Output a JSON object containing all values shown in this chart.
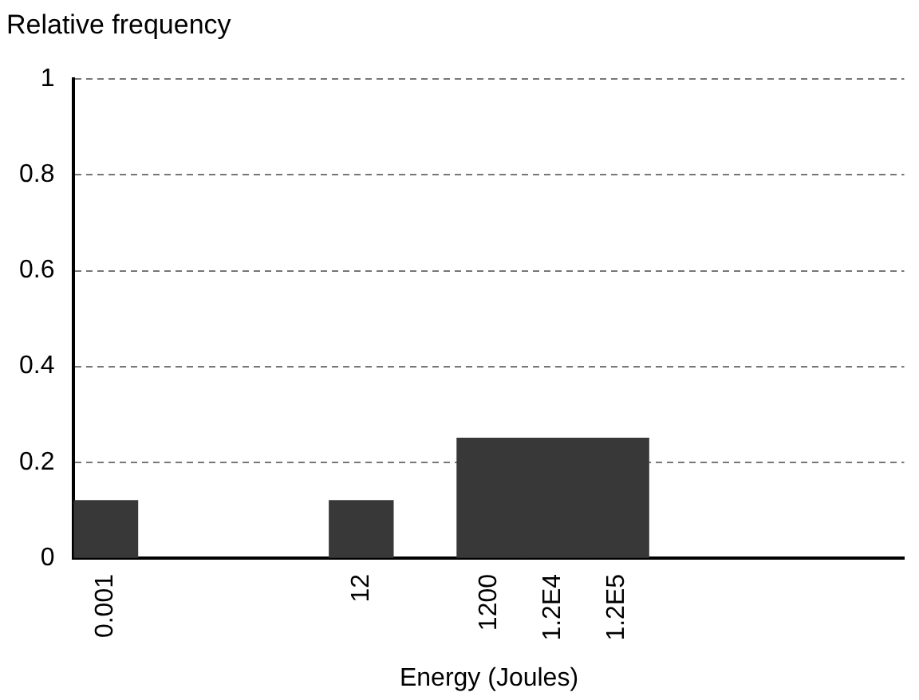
{
  "chart_data": {
    "type": "bar",
    "ylabel": "Relative frequency",
    "xlabel": "Energy (Joules)",
    "categories": [
      "0.001",
      null,
      null,
      null,
      "12",
      null,
      "1200",
      "1.2E4",
      "1.2E5",
      null,
      null,
      null,
      null
    ],
    "values": [
      0.12,
      null,
      null,
      null,
      0.12,
      null,
      0.25,
      0.25,
      0.25,
      null,
      null,
      null,
      null
    ],
    "color": "#383838",
    "ylim": [
      0,
      1
    ],
    "yticks": [
      0,
      0.2,
      0.4,
      0.6,
      0.8,
      1
    ],
    "grid": "y",
    "legend": false
  }
}
